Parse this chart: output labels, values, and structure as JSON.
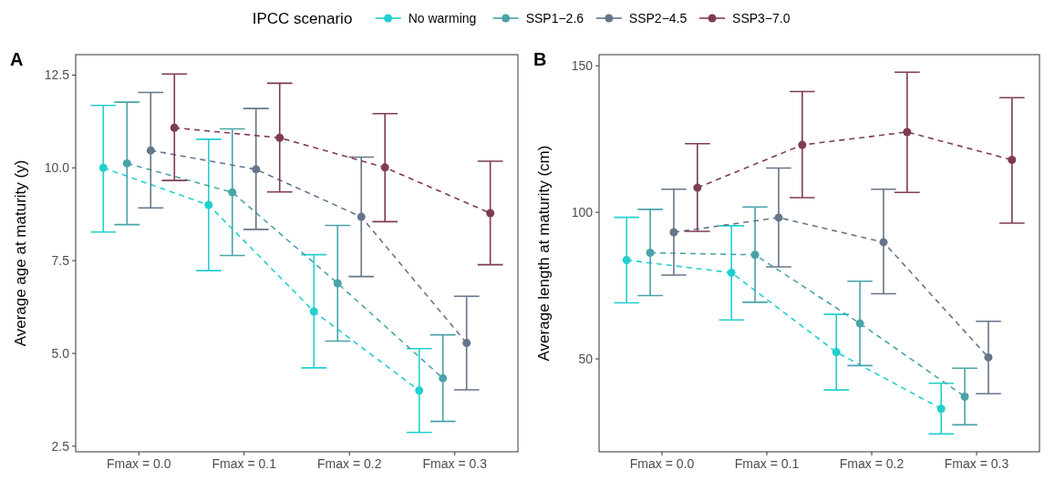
{
  "chart_data": [
    {
      "type": "line",
      "title": "A",
      "ylabel": "Average age at maturity (y)",
      "legend_title": "IPCC scenario",
      "legend": "top",
      "marker": "circle",
      "line_style": "dashed",
      "categories": [
        "Fmax = 0.0",
        "Fmax = 0.1",
        "Fmax = 0.2",
        "Fmax = 0.3"
      ],
      "ylim": [
        2.35,
        13.05
      ],
      "yticks": [
        {
          "value": 2.5,
          "label": "2.5"
        },
        {
          "value": 5,
          "label": "5.0"
        },
        {
          "value": 7.5,
          "label": "7.5"
        },
        {
          "value": 10,
          "label": "10.0"
        },
        {
          "value": 12.5,
          "label": "12.5"
        }
      ],
      "series": [
        {
          "name": "No warming",
          "color": "#22cfcf",
          "values": [
            10.0,
            9.0,
            6.13,
            4.0
          ],
          "errors": [
            [
              8.27,
              11.68
            ],
            [
              7.23,
              10.77
            ],
            [
              4.61,
              7.66
            ],
            [
              2.87,
              5.13
            ]
          ]
        },
        {
          "name": "SSP1−2.6",
          "color": "#4aa3a8",
          "values": [
            10.12,
            9.34,
            6.89,
            4.33
          ],
          "errors": [
            [
              8.47,
              11.77
            ],
            [
              7.64,
              11.05
            ],
            [
              5.33,
              8.45
            ],
            [
              3.17,
              5.5
            ]
          ]
        },
        {
          "name": "SSP2−4.5",
          "color": "#65758a",
          "values": [
            10.47,
            9.96,
            8.68,
            5.28
          ],
          "errors": [
            [
              8.92,
              12.03
            ],
            [
              8.34,
              11.6
            ],
            [
              7.07,
              10.29
            ],
            [
              4.02,
              6.54
            ]
          ]
        },
        {
          "name": "SSP3−7.0",
          "color": "#7f3b55",
          "values": [
            11.08,
            10.81,
            10.01,
            8.78
          ],
          "errors": [
            [
              9.66,
              12.53
            ],
            [
              9.35,
              12.28
            ],
            [
              8.55,
              11.46
            ],
            [
              7.39,
              10.18
            ]
          ]
        }
      ]
    },
    {
      "type": "line",
      "title": "B",
      "ylabel": "Average length at maturity (cm)",
      "marker": "circle",
      "line_style": "dashed",
      "categories": [
        "Fmax = 0.0",
        "Fmax = 0.1",
        "Fmax = 0.2",
        "Fmax = 0.3"
      ],
      "ylim": [
        18.3,
        153.8
      ],
      "yticks": [
        50,
        100,
        150
      ],
      "series": [
        {
          "color": "#22cfcf",
          "values": [
            83.7,
            79.4,
            52.3,
            33.0
          ],
          "errors": [
            [
              69.1,
              98.3
            ],
            [
              63.3,
              95.4
            ],
            [
              39.4,
              65.2
            ],
            [
              24.4,
              41.7
            ]
          ]
        },
        {
          "color": "#4aa3a8",
          "values": [
            86.2,
            85.5,
            62.1,
            37.1
          ],
          "errors": [
            [
              71.6,
              101.0
            ],
            [
              69.3,
              101.8
            ],
            [
              47.7,
              76.5
            ],
            [
              27.5,
              46.8
            ]
          ]
        },
        {
          "color": "#65758a",
          "values": [
            93.2,
            98.2,
            89.8,
            50.5
          ],
          "errors": [
            [
              78.6,
              107.9
            ],
            [
              81.4,
              115.1
            ],
            [
              72.2,
              107.9
            ],
            [
              38.1,
              62.8
            ]
          ]
        },
        {
          "color": "#7f3b55",
          "values": [
            108.4,
            123.0,
            127.4,
            117.9
          ],
          "errors": [
            [
              93.5,
              123.4
            ],
            [
              105.0,
              141.2
            ],
            [
              106.8,
              147.8
            ],
            [
              96.3,
              139.1
            ]
          ]
        }
      ]
    }
  ]
}
